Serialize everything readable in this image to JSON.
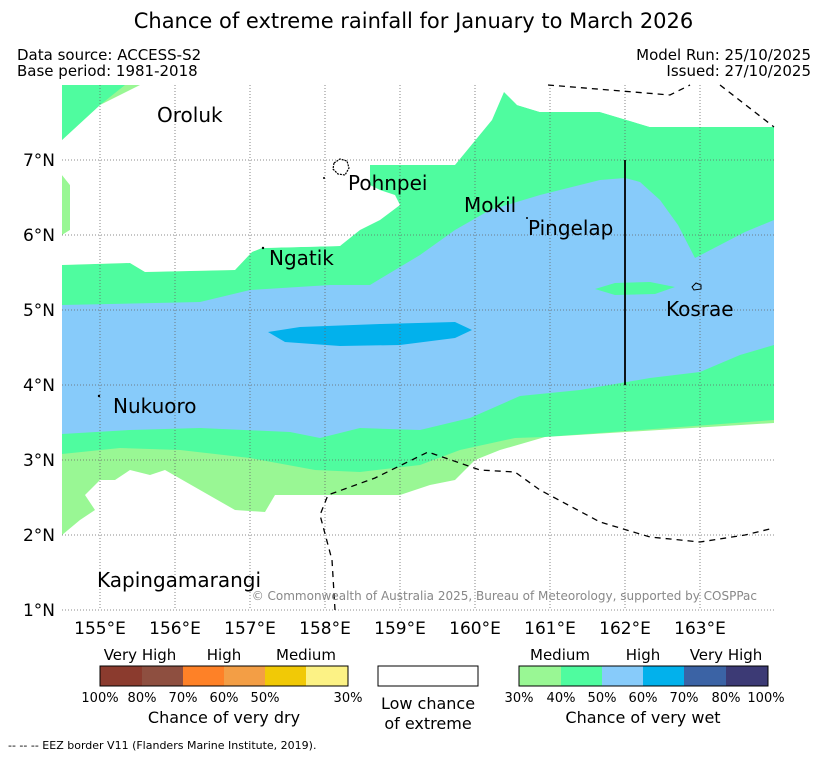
{
  "title": "Chance of extreme rainfall for January to March 2026",
  "meta": {
    "data_source": "Data source: ACCESS-S2",
    "base_period": "Base period: 1981-2018",
    "model_run": "Model Run: 25/10/2025",
    "issued": "Issued: 27/10/2025"
  },
  "map": {
    "lon_labels": [
      "155°E",
      "156°E",
      "157°E",
      "158°E",
      "159°E",
      "160°E",
      "161°E",
      "162°E",
      "163°E"
    ],
    "lat_labels": [
      "1°N",
      "2°N",
      "3°N",
      "4°N",
      "5°N",
      "6°N",
      "7°N"
    ],
    "places": {
      "oroluk": "Oroluk",
      "pohnpei": "Pohnpei",
      "mokil": "Mokil",
      "pingelap": "Pingelap",
      "ngatik": "Ngatik",
      "kosrae": "Kosrae",
      "nukuoro": "Nukuoro",
      "kapingamarangi": "Kapingamarangi"
    },
    "copyright": "© Commonwealth of Australia 2025, Bureau of Meteorology, supported by COSPPac",
    "colors": {
      "wet_medium_30": "#99f794",
      "wet_medium_40": "#4ffc9f",
      "wet_high_50": "#87cbfa",
      "wet_high_60": "#02b1ec",
      "wet_veryhigh_70": "#3b63a5",
      "wet_veryhigh_80": "#3c3a75"
    }
  },
  "legend": {
    "dry": {
      "headers": [
        "Very High",
        "High",
        "Medium"
      ],
      "ticks": [
        "100%",
        "80%",
        "70%",
        "60%",
        "50%",
        "30%"
      ],
      "title": "Chance of very dry",
      "colors": [
        "#8b3b2e",
        "#8e4f40",
        "#fe8127",
        "#f39e45",
        "#f1c906",
        "#fcf285"
      ]
    },
    "low": {
      "line1": "Low chance",
      "line2": "of extreme"
    },
    "wet": {
      "headers": [
        "Medium",
        "High",
        "Very High"
      ],
      "ticks": [
        "30%",
        "40%",
        "50%",
        "60%",
        "70%",
        "80%",
        "100%"
      ],
      "title": "Chance of very wet",
      "colors": [
        "#99f794",
        "#4ffc9f",
        "#87cbfa",
        "#02b1ec",
        "#3b63a5",
        "#3c3a75"
      ]
    }
  },
  "footnote": "-- -- -- EEZ border V11 (Flanders Marine Institute, 2019)."
}
